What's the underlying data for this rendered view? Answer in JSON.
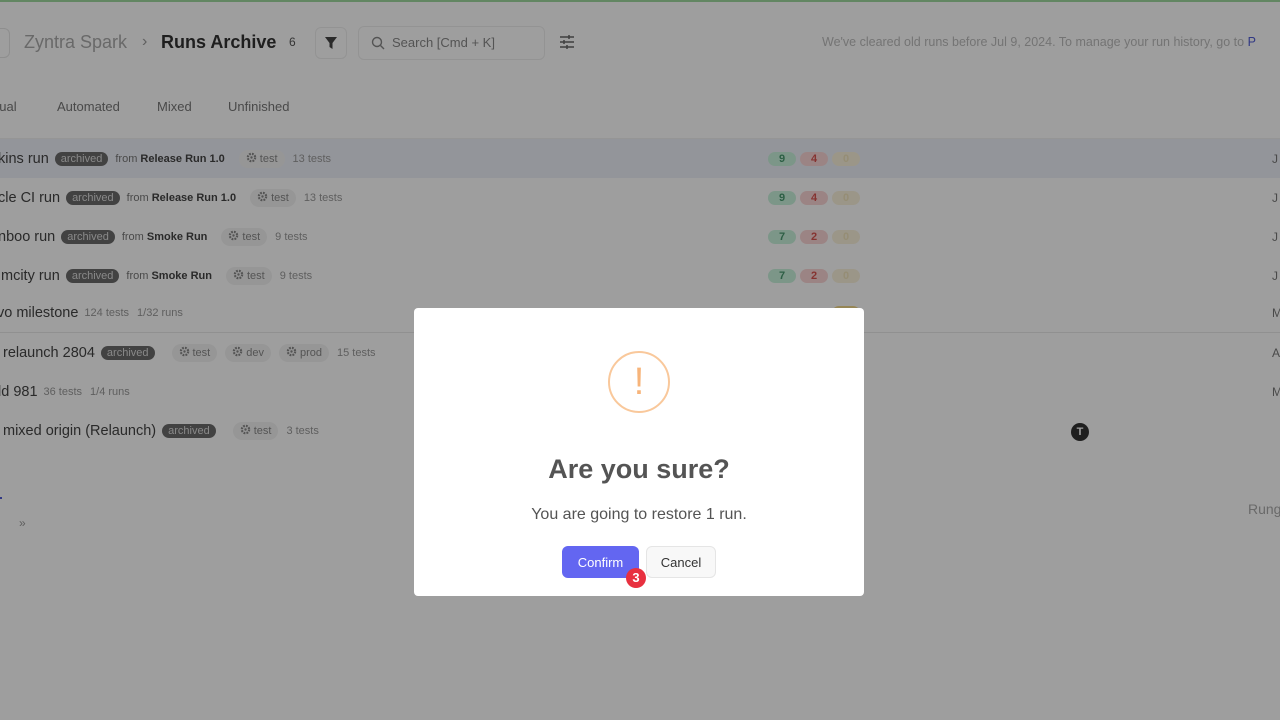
{
  "header": {
    "app_name": "Zyntra Spark",
    "separator": "›",
    "page_title": "Runs Archive",
    "count": "6",
    "search_placeholder": "Search [Cmd + K]",
    "notice": "We've cleared old runs before Jul 9, 2024. To manage your run history, go to ",
    "notice_link": "P"
  },
  "tabs": [
    "nual",
    "Automated",
    "Mixed",
    "Unfinished"
  ],
  "rows": [
    {
      "name": "kins run",
      "badge": "archived",
      "from_label": "from",
      "from": "Release Run 1.0",
      "envs": [
        "test"
      ],
      "tests": "13 tests",
      "stats": [
        "9",
        "4",
        "0"
      ],
      "right": "J"
    },
    {
      "name": "cle CI run",
      "badge": "archived",
      "from_label": "from",
      "from": "Release Run 1.0",
      "envs": [
        "test"
      ],
      "tests": "13 tests",
      "stats": [
        "9",
        "4",
        "0"
      ],
      "right": "J"
    },
    {
      "name": "nboo run",
      "badge": "archived",
      "from_label": "from",
      "from": "Smoke Run",
      "envs": [
        "test"
      ],
      "tests": "9 tests",
      "stats": [
        "7",
        "2",
        "0"
      ],
      "right": "J"
    },
    {
      "name": "mcity run",
      "badge": "archived",
      "from_label": "from",
      "from": "Smoke Run",
      "envs": [
        "test"
      ],
      "tests": "9 tests",
      "stats": [
        "7",
        "2",
        "0"
      ],
      "right": "J"
    },
    {
      "name": "vo milestone",
      "tests": "124 tests",
      "runs": "1/32 runs",
      "stats_visible": "2",
      "right": "M"
    },
    {
      "name": "relaunch 2804",
      "badge": "archived",
      "envs": [
        "test",
        "dev",
        "prod"
      ],
      "tests": "15 tests",
      "right": "A"
    },
    {
      "name": "ld 981",
      "tests": "36 tests",
      "runs": "1/4 runs",
      "right": "M"
    },
    {
      "name": "mixed origin (Relaunch)",
      "badge": "archived",
      "envs": [
        "test"
      ],
      "tests": "3 tests"
    }
  ],
  "avatar_letter": "T",
  "right_label": "Rung",
  "pager_next": "»",
  "modal": {
    "icon": "!",
    "title": "Are you sure?",
    "text": "You are going to restore 1 run.",
    "confirm": "Confirm",
    "cancel": "Cancel",
    "step_badge": "3"
  },
  "colors": {
    "accent": "#6366f1",
    "warning": "#f7b47a",
    "badge": "#e8303f"
  }
}
